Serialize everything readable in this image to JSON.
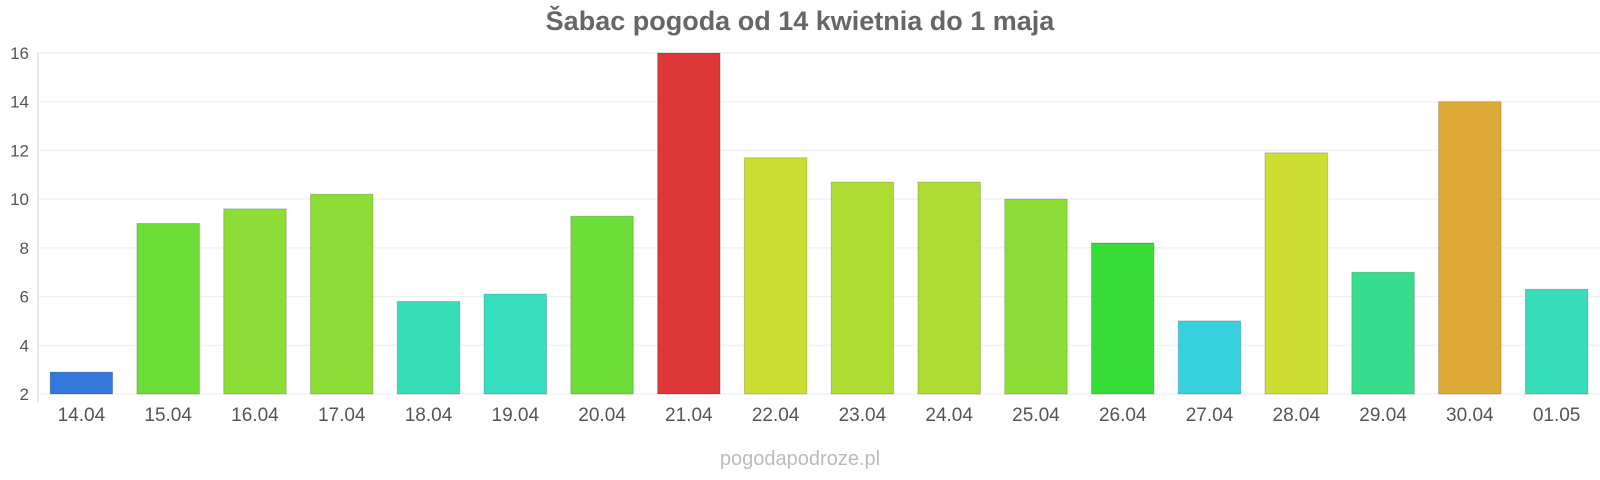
{
  "chart_data": {
    "type": "bar",
    "title": "Šabac pogoda od 14 kwietnia do 1 maja",
    "xlabel": "",
    "ylabel": "",
    "ylim": [
      2,
      16
    ],
    "yticks": [
      2,
      4,
      6,
      8,
      10,
      12,
      14,
      16
    ],
    "grid": true,
    "legend": "none",
    "categories": [
      "14.04",
      "15.04",
      "16.04",
      "17.04",
      "18.04",
      "19.04",
      "20.04",
      "21.04",
      "22.04",
      "23.04",
      "24.04",
      "25.04",
      "26.04",
      "27.04",
      "28.04",
      "29.04",
      "30.04",
      "01.05"
    ],
    "values": [
      2.9,
      9.0,
      9.6,
      10.2,
      5.8,
      6.1,
      9.3,
      16.0,
      11.7,
      10.7,
      10.7,
      10.0,
      8.2,
      5.0,
      11.9,
      7.0,
      14.0,
      6.3
    ],
    "colors": [
      "#3477db",
      "#6ddd37",
      "#8ddd37",
      "#8ddd37",
      "#37ddb7",
      "#37ddc0",
      "#6ddd37",
      "#dd3737",
      "#cddd32",
      "#addd32",
      "#addd32",
      "#8ddd37",
      "#37dd37",
      "#37d0dd",
      "#cddd32",
      "#37dd8d",
      "#ddaa37",
      "#37ddbb"
    ]
  },
  "footer": {
    "watermark": "pogodapodroze.pl"
  }
}
